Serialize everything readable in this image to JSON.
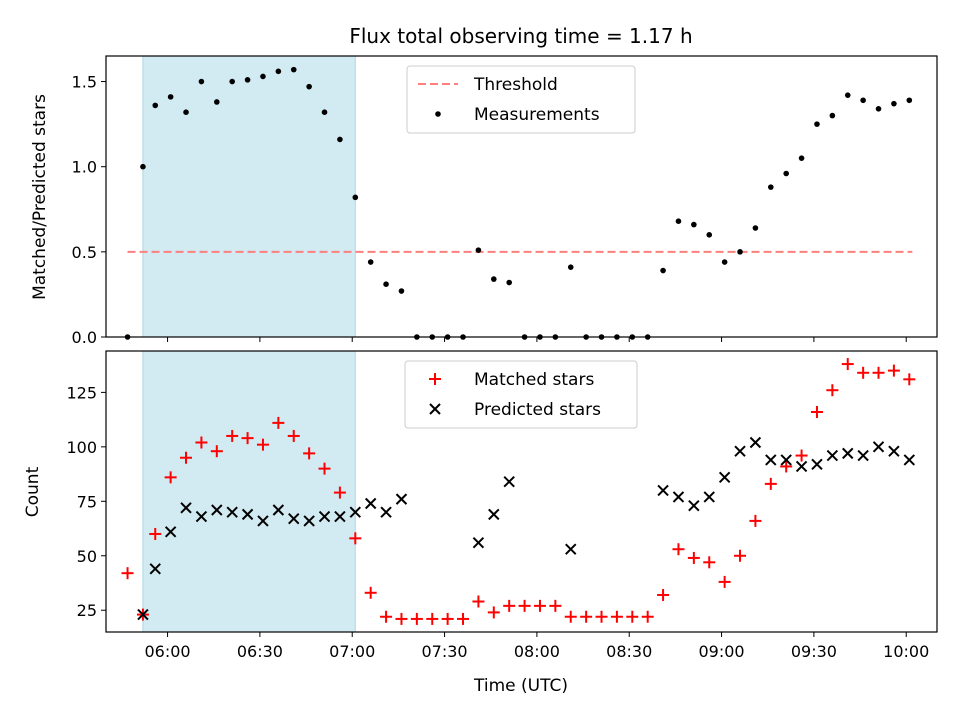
{
  "title": "Flux total observing time = 1.17 h",
  "xlabel": "Time (UTC)",
  "x_tick_labels": [
    "06:00",
    "06:30",
    "07:00",
    "07:30",
    "08:00",
    "08:30",
    "09:00",
    "09:30",
    "10:00"
  ],
  "colors": {
    "threshold": "#ff7f7f",
    "measurement": "#000000",
    "matched": "#ff0000",
    "predicted": "#000000",
    "shade": "#add8e6"
  },
  "chart_data": [
    {
      "type": "scatter",
      "ylabel": "Matched/Predicted stars",
      "xlim": [
        "05:40",
        "10:10"
      ],
      "ylim": [
        0,
        1.65
      ],
      "y_ticks": [
        0.0,
        0.5,
        1.0,
        1.5
      ],
      "y_tick_labels": [
        "0.0",
        "0.5",
        "1.0",
        "1.5"
      ],
      "shaded_interval": [
        "05:52",
        "07:01"
      ],
      "threshold": {
        "label": "Threshold",
        "value": 0.5,
        "x_range": [
          "05:47",
          "10:02"
        ]
      },
      "legend": {
        "placement": "top-center",
        "entries": [
          "Threshold",
          "Measurements"
        ]
      },
      "series": [
        {
          "name": "Measurements",
          "x": [
            "05:47",
            "05:52",
            "05:56",
            "06:01",
            "06:06",
            "06:11",
            "06:16",
            "06:21",
            "06:26",
            "06:31",
            "06:36",
            "06:41",
            "06:46",
            "06:51",
            "06:56",
            "07:01",
            "07:06",
            "07:11",
            "07:16",
            "07:21",
            "07:26",
            "07:31",
            "07:36",
            "07:41",
            "07:46",
            "07:51",
            "07:56",
            "08:01",
            "08:06",
            "08:11",
            "08:16",
            "08:21",
            "08:26",
            "08:31",
            "08:36",
            "08:41",
            "08:46",
            "08:51",
            "08:56",
            "09:01",
            "09:06",
            "09:11",
            "09:16",
            "09:21",
            "09:26",
            "09:31",
            "09:36",
            "09:41",
            "09:46",
            "09:51",
            "09:56",
            "10:01"
          ],
          "y": [
            0.0,
            1.0,
            1.36,
            1.41,
            1.32,
            1.5,
            1.38,
            1.5,
            1.51,
            1.53,
            1.56,
            1.57,
            1.47,
            1.32,
            1.16,
            0.82,
            0.44,
            0.31,
            0.27,
            0.0,
            0.0,
            0.0,
            0.0,
            0.51,
            0.34,
            0.32,
            0.0,
            0.0,
            0.0,
            0.41,
            0.0,
            0.0,
            0.0,
            0.0,
            0.0,
            0.39,
            0.68,
            0.66,
            0.6,
            0.44,
            0.5,
            0.64,
            0.88,
            0.96,
            1.05,
            1.25,
            1.3,
            1.42,
            1.39,
            1.34,
            1.37,
            1.39
          ]
        }
      ]
    },
    {
      "type": "scatter",
      "ylabel": "Count",
      "xlim": [
        "05:40",
        "10:10"
      ],
      "ylim": [
        15,
        144
      ],
      "y_ticks": [
        25,
        50,
        75,
        100,
        125
      ],
      "y_tick_labels": [
        "25",
        "50",
        "75",
        "100",
        "125"
      ],
      "shaded_interval": [
        "05:52",
        "07:01"
      ],
      "legend": {
        "placement": "top-center",
        "entries": [
          "Matched stars",
          "Predicted stars"
        ]
      },
      "series": [
        {
          "name": "Matched stars",
          "marker": "plus",
          "x": [
            "05:47",
            "05:52",
            "05:56",
            "06:01",
            "06:06",
            "06:11",
            "06:16",
            "06:21",
            "06:26",
            "06:31",
            "06:36",
            "06:41",
            "06:46",
            "06:51",
            "06:56",
            "07:01",
            "07:06",
            "07:11",
            "07:16",
            "07:21",
            "07:26",
            "07:31",
            "07:36",
            "07:41",
            "07:46",
            "07:51",
            "07:56",
            "08:01",
            "08:06",
            "08:11",
            "08:16",
            "08:21",
            "08:26",
            "08:31",
            "08:36",
            "08:41",
            "08:46",
            "08:51",
            "08:56",
            "09:01",
            "09:06",
            "09:11",
            "09:16",
            "09:21",
            "09:26",
            "09:31",
            "09:36",
            "09:41",
            "09:46",
            "09:51",
            "09:56",
            "10:01"
          ],
          "y": [
            42,
            23,
            60,
            86,
            95,
            102,
            98,
            105,
            104,
            101,
            111,
            105,
            97,
            90,
            79,
            58,
            33,
            22,
            21,
            21,
            21,
            21,
            21,
            29,
            24,
            27,
            27,
            27,
            27,
            22,
            22,
            22,
            22,
            22,
            22,
            32,
            53,
            49,
            47,
            38,
            50,
            66,
            83,
            91,
            96,
            116,
            126,
            138,
            134,
            134,
            135,
            131
          ]
        },
        {
          "name": "Predicted stars",
          "marker": "x",
          "x": [
            "05:52",
            "05:56",
            "06:01",
            "06:06",
            "06:11",
            "06:16",
            "06:21",
            "06:26",
            "06:31",
            "06:36",
            "06:41",
            "06:46",
            "06:51",
            "06:56",
            "07:01",
            "07:06",
            "07:11",
            "07:16",
            "07:41",
            "07:46",
            "07:51",
            "08:11",
            "08:41",
            "08:46",
            "08:51",
            "08:56",
            "09:01",
            "09:06",
            "09:11",
            "09:16",
            "09:21",
            "09:26",
            "09:31",
            "09:36",
            "09:41",
            "09:46",
            "09:51",
            "09:56",
            "10:01"
          ],
          "y": [
            23,
            44,
            61,
            72,
            68,
            71,
            70,
            69,
            66,
            71,
            67,
            66,
            68,
            68,
            70,
            74,
            70,
            76,
            56,
            69,
            84,
            53,
            80,
            77,
            73,
            77,
            86,
            98,
            102,
            94,
            94,
            91,
            92,
            96,
            97,
            96,
            100,
            98,
            94
          ]
        }
      ]
    }
  ]
}
